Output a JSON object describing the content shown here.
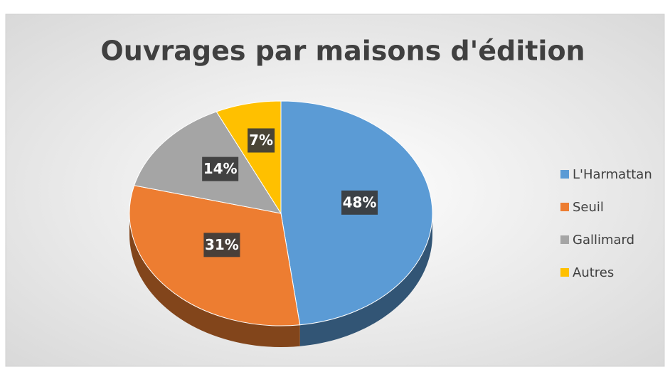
{
  "chart_data": {
    "type": "pie",
    "title": "Ouvrages par maisons d'édition",
    "categories": [
      "L'Harmattan",
      "Seuil",
      "Gallimard",
      "Autres"
    ],
    "values": [
      48,
      31,
      14,
      7
    ],
    "value_labels": [
      "48%",
      "31%",
      "14%",
      "7%"
    ],
    "colors": [
      "#5b9bd5",
      "#ed7d31",
      "#a5a5a5",
      "#ffc000"
    ],
    "legend": "right"
  }
}
